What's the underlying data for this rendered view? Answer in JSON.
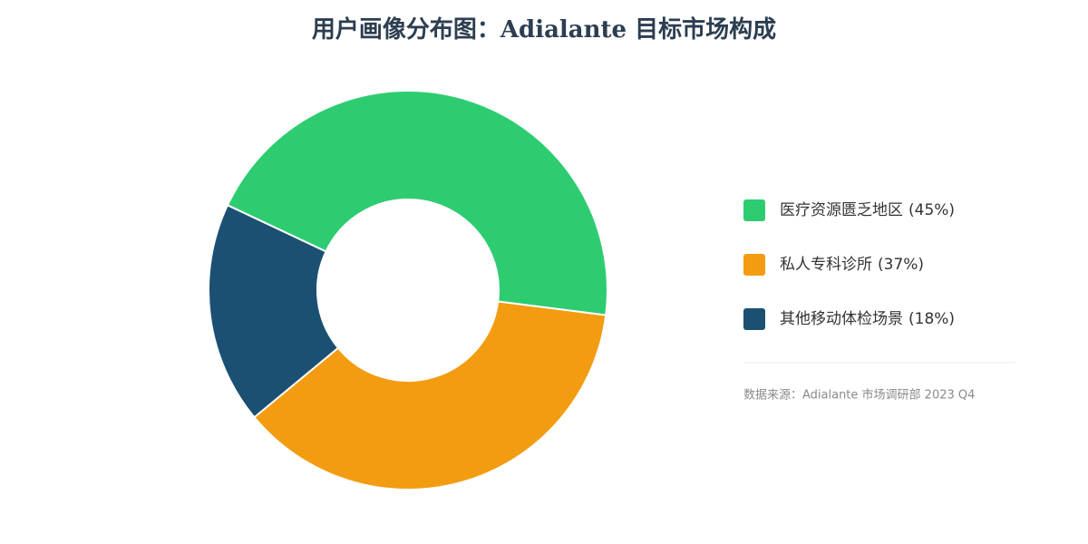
{
  "chart_data": {
    "type": "donut",
    "title": "用户画像分布图：Adialante 目标市场构成",
    "categories": [
      "医疗资源匮乏地区",
      "私人专科诊所",
      "其他移动体检场景"
    ],
    "values": [
      45,
      37,
      18
    ],
    "value_labels": [
      "(45%)",
      "(37%)",
      "(18%)"
    ],
    "colors": [
      "#2ecc71",
      "#f39c12",
      "#1b5073"
    ],
    "source": "数据来源：Adialante 市场调研部 2023 Q4"
  }
}
